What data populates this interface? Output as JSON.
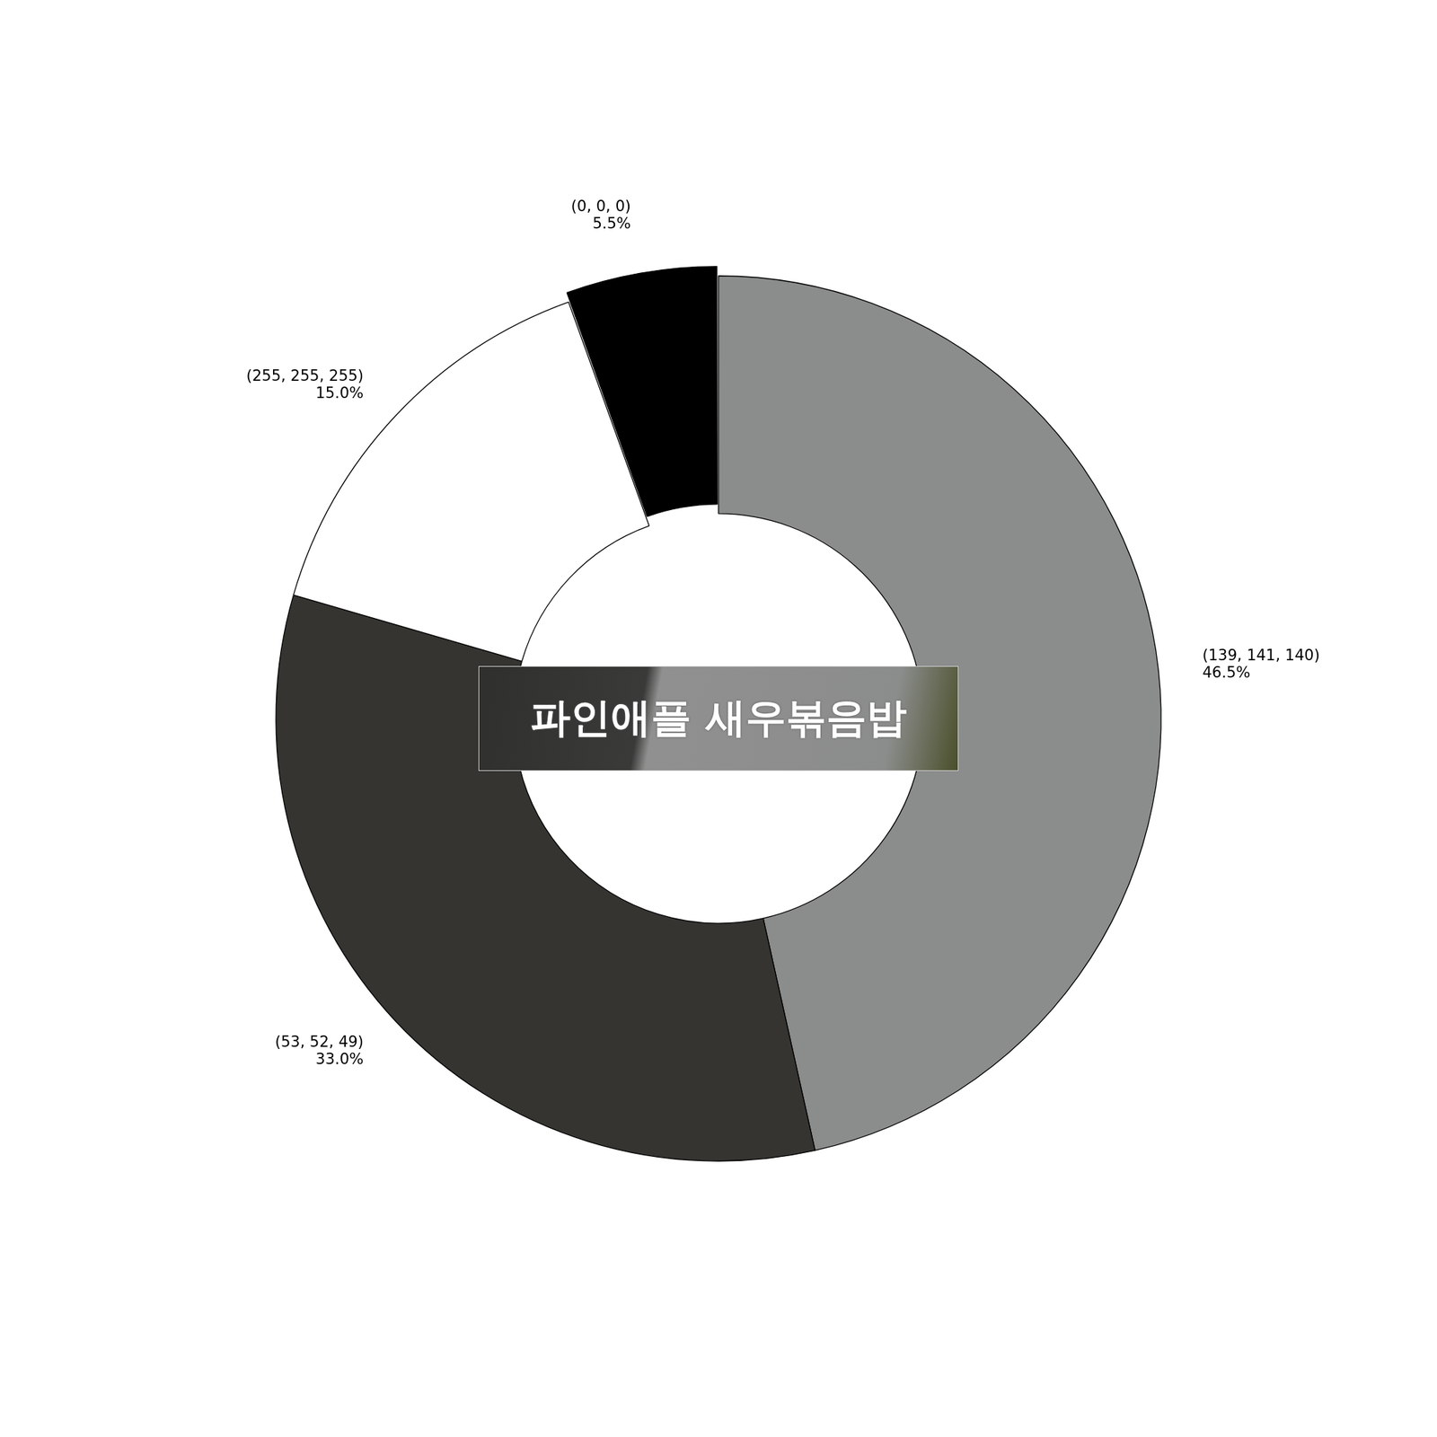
{
  "chart_data": {
    "type": "doughnut",
    "categories": [
      "(139, 141, 140)",
      "(53, 52, 49)",
      "(255, 255, 255)",
      "(0, 0, 0)"
    ],
    "values": [
      46.5,
      33.0,
      15.0,
      5.5
    ],
    "value_labels": [
      "46.5%",
      "33.0%",
      "15.0%",
      "5.5%"
    ],
    "colors": [
      "#8b8d8c",
      "#353431",
      "#ffffff",
      "#000000"
    ],
    "data_labels": true,
    "annotations": [
      "파인애플 새우볶음밥"
    ]
  }
}
